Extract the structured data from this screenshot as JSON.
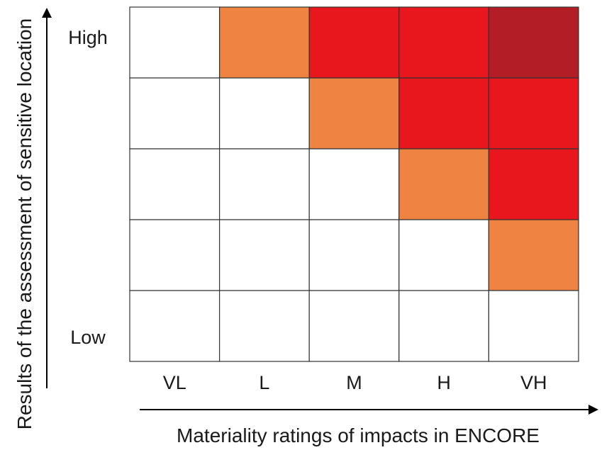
{
  "chart_data": {
    "type": "heatmap",
    "xlabel": "Materiality ratings of impacts in ENCORE",
    "ylabel": "Results of the assessment of sensitive location",
    "x_categories": [
      "VL",
      "L",
      "M",
      "H",
      "VH"
    ],
    "y_end_labels": {
      "top": "High",
      "bottom": "Low"
    },
    "rows": 5,
    "grid": true,
    "levels": {
      "none": "#ffffff",
      "medium": "#ef8442",
      "high": "#e8161d",
      "very_high": "#b31d25"
    },
    "cells": [
      [
        "none",
        "medium",
        "high",
        "high",
        "very_high"
      ],
      [
        "none",
        "none",
        "medium",
        "high",
        "high"
      ],
      [
        "none",
        "none",
        "none",
        "medium",
        "high"
      ],
      [
        "none",
        "none",
        "none",
        "none",
        "medium"
      ],
      [
        "none",
        "none",
        "none",
        "none",
        "none"
      ]
    ]
  }
}
